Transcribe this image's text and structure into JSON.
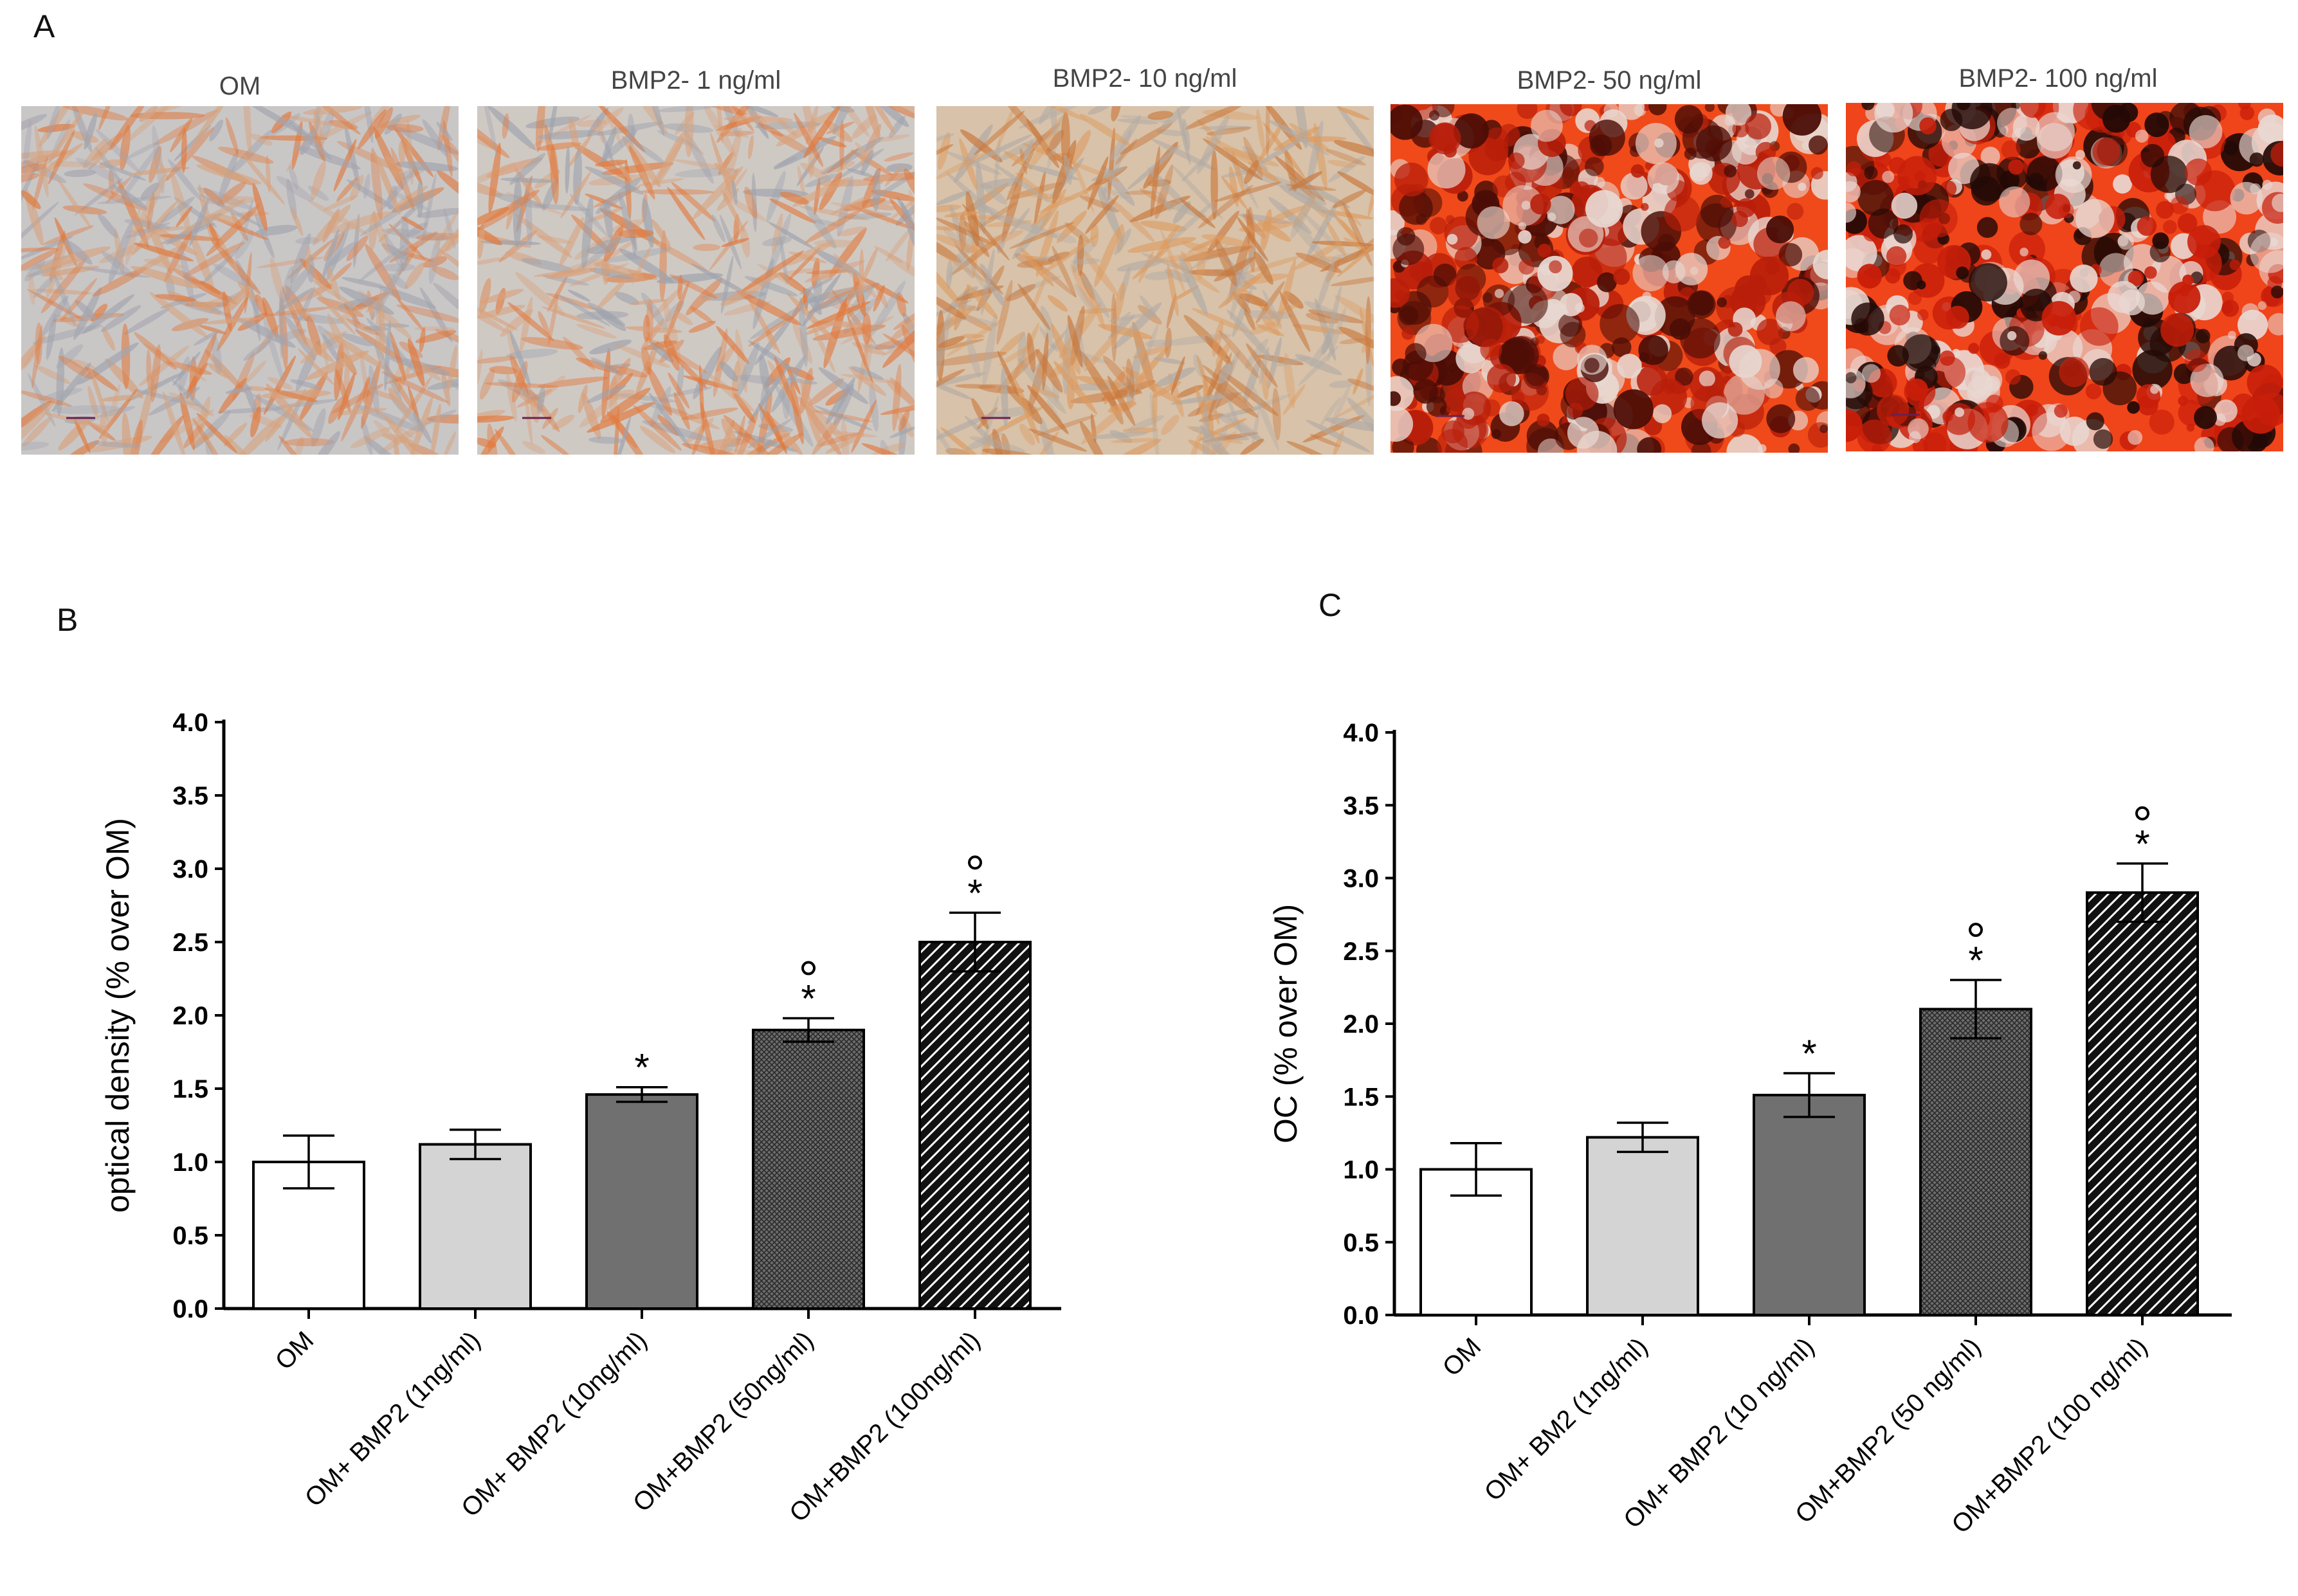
{
  "panel_labels": {
    "a": "A",
    "b": "B",
    "c": "C"
  },
  "panel_a": {
    "images": [
      {
        "caption": "OM",
        "stain": "light",
        "palette": [
          "#c9c6c6",
          "#a2a4ae",
          "#d7a27c",
          "#e07a3e"
        ]
      },
      {
        "caption": "BMP2- 1 ng/ml",
        "stain": "light",
        "palette": [
          "#cfc9c4",
          "#9da2ad",
          "#d9a17b",
          "#e2793c"
        ]
      },
      {
        "caption": "BMP2- 10 ng/ml",
        "stain": "medium",
        "palette": [
          "#d8c2a9",
          "#b0aaa5",
          "#dd9a5e",
          "#c9783c"
        ]
      },
      {
        "caption": "BMP2- 50 ng/ml",
        "stain": "strong",
        "palette": [
          "#f04a1a",
          "#e7d7d0",
          "#b81e0a",
          "#4a0d06"
        ]
      },
      {
        "caption": "BMP2- 100 ng/ml",
        "stain": "very-strong",
        "palette": [
          "#f0441a",
          "#230a06",
          "#c81e0a",
          "#e9d8d2"
        ]
      }
    ]
  },
  "chart_data": [
    {
      "type": "bar",
      "panel": "B",
      "categories": [
        "OM",
        "OM+ BMP2 (1ng/ml)",
        "OM+ BMP2 (10ng/ml)",
        "OM+BMP2 (50ng/ml)",
        "OM+BMP2 (100ng/ml)"
      ],
      "values": [
        1.0,
        1.12,
        1.46,
        1.9,
        2.5
      ],
      "errors": [
        0.18,
        0.1,
        0.05,
        0.08,
        0.2
      ],
      "markers": [
        "",
        "",
        "*",
        "*",
        "*"
      ],
      "circle_markers": [
        "",
        "",
        "",
        "°",
        "°"
      ],
      "fills": [
        "white",
        "lightgray",
        "gray",
        "crosshatch",
        "diagonal"
      ],
      "ylabel": "optical density  (% over OM)",
      "ylim": [
        0,
        4
      ],
      "yticks": [
        "0.0",
        "0.5",
        "1.0",
        "1.5",
        "2.0",
        "2.5",
        "3.0",
        "3.5",
        "4.0"
      ]
    },
    {
      "type": "bar",
      "panel": "C",
      "categories": [
        "OM",
        "OM+ BM2 (1ng/ml)",
        "OM+ BMP2 (10 ng/ml)",
        "OM+BMP2 (50 ng/ml)",
        "OM+BMP2 (100 ng/ml)"
      ],
      "values": [
        1.0,
        1.22,
        1.51,
        2.1,
        2.9
      ],
      "errors": [
        0.18,
        0.1,
        0.15,
        0.2,
        0.2
      ],
      "markers": [
        "",
        "",
        "*",
        "*",
        "*"
      ],
      "circle_markers": [
        "",
        "",
        "",
        "°",
        "°"
      ],
      "fills": [
        "white",
        "lightgray",
        "gray",
        "crosshatch",
        "diagonal"
      ],
      "ylabel": "OC (% over OM)",
      "ylim": [
        0,
        4
      ],
      "yticks": [
        "0.0",
        "0.5",
        "1.0",
        "1.5",
        "2.0",
        "2.5",
        "3.0",
        "3.5",
        "4.0"
      ]
    }
  ]
}
